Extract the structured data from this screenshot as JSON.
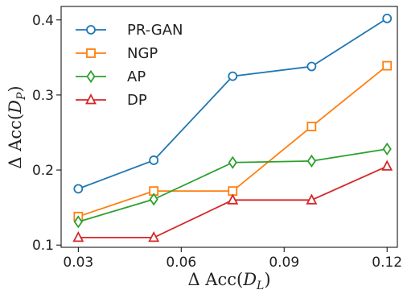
{
  "chart_data": {
    "type": "line",
    "title": "",
    "xlabel": "Δ Acc(D_L)",
    "ylabel": "Δ Acc(D_P)",
    "xlim": [
      0.025,
      0.123
    ],
    "ylim": [
      0.097,
      0.418
    ],
    "xticks": [
      0.03,
      0.06,
      0.09,
      0.12
    ],
    "xtick_labels": [
      "0.03",
      "0.06",
      "0.09",
      "0.12"
    ],
    "yticks": [
      0.1,
      0.2,
      0.3,
      0.4
    ],
    "ytick_labels": [
      "0.1",
      "0.2",
      "0.3",
      "0.4"
    ],
    "grid": false,
    "legend_position": "top-left",
    "series": [
      {
        "name": "PR-GAN",
        "color": "#1f77b4",
        "marker": "circle",
        "x": [
          0.03,
          0.052,
          0.075,
          0.098,
          0.12
        ],
        "y": [
          0.175,
          0.213,
          0.325,
          0.338,
          0.402
        ]
      },
      {
        "name": "NGP",
        "color": "#ff7f0e",
        "marker": "square",
        "x": [
          0.03,
          0.052,
          0.075,
          0.098,
          0.12
        ],
        "y": [
          0.138,
          0.172,
          0.172,
          0.258,
          0.339
        ]
      },
      {
        "name": "AP",
        "color": "#2ca02c",
        "marker": "diamond",
        "x": [
          0.03,
          0.052,
          0.075,
          0.098,
          0.12
        ],
        "y": [
          0.131,
          0.161,
          0.21,
          0.212,
          0.228
        ]
      },
      {
        "name": "DP",
        "color": "#d62728",
        "marker": "triangle",
        "x": [
          0.03,
          0.052,
          0.075,
          0.098,
          0.12
        ],
        "y": [
          0.11,
          0.11,
          0.16,
          0.16,
          0.205
        ]
      }
    ]
  }
}
